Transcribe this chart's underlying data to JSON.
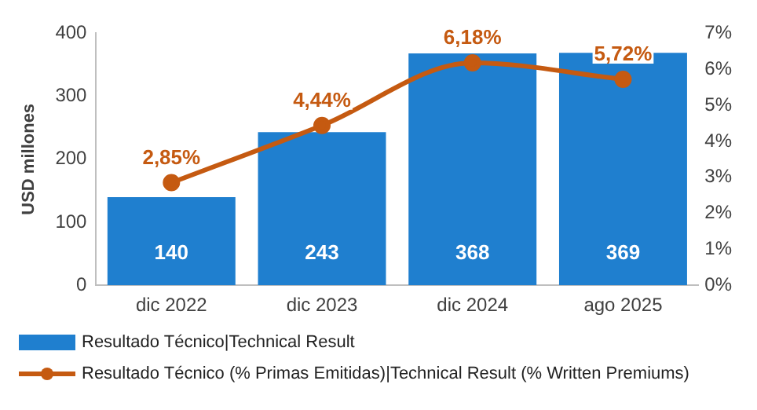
{
  "chart_data": {
    "type": "bar",
    "categories": [
      "dic 2022",
      "dic 2023",
      "dic 2024",
      "ago 2025"
    ],
    "ylabel": "USD millones",
    "ylim": [
      0,
      400
    ],
    "yticks": [
      0,
      100,
      200,
      300,
      400
    ],
    "y2lim": [
      0,
      7
    ],
    "y2ticks": [
      {
        "value": 0,
        "label": "0%"
      },
      {
        "value": 1,
        "label": "1%"
      },
      {
        "value": 2,
        "label": "2%"
      },
      {
        "value": 3,
        "label": "3%"
      },
      {
        "value": 4,
        "label": "4%"
      },
      {
        "value": 5,
        "label": "5%"
      },
      {
        "value": 6,
        "label": "6%"
      },
      {
        "value": 7,
        "label": "7%"
      }
    ],
    "grid": false,
    "legend": "bottom",
    "series": [
      {
        "name": "Resultado Técnico|Technical Result",
        "color": "#1f7fcf",
        "values": [
          140,
          243,
          368,
          369
        ],
        "value_labels": [
          "140",
          "243",
          "368",
          "369"
        ]
      },
      {
        "name": "Resultado Técnico (% Primas Emitidas)|Technical Result (% Written Premiums)",
        "type": "line",
        "axis": "y2",
        "color": "#c55a11",
        "marker": "circle",
        "values": [
          2.85,
          4.44,
          6.18,
          5.72
        ],
        "value_labels": [
          "2,85%",
          "4,44%",
          "6,18%",
          "5,72%"
        ]
      }
    ]
  }
}
